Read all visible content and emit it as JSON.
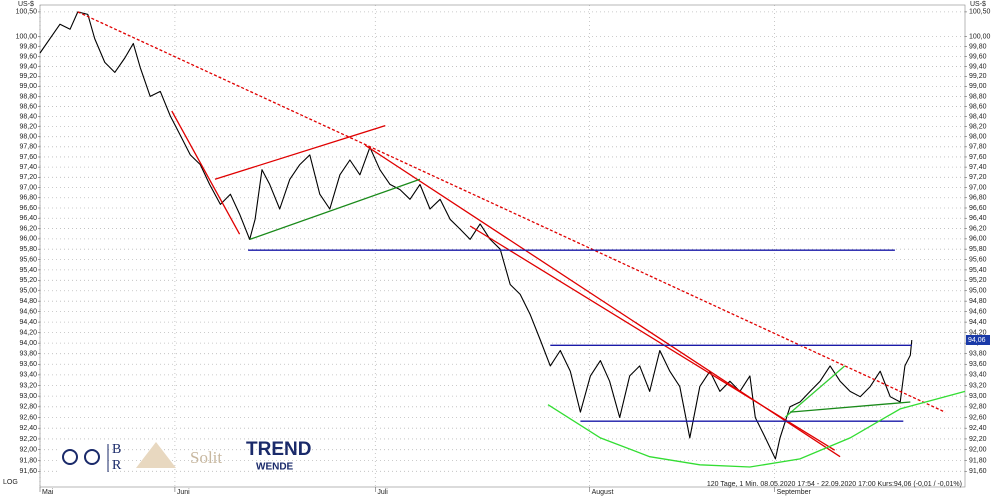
{
  "chart_data": {
    "type": "line",
    "y_unit_label": "US-$",
    "scale_label": "LOG",
    "log": true,
    "grid": true,
    "footer": "120 Tage, 1 Min. 08.05.2020 17:54 - 22.09.2020 17:00 Kurs:94,06 (-0,01 / -0,01%)",
    "price_marker": {
      "value": 94.06,
      "label": "94,06"
    },
    "logos": {
      "br": [
        "B",
        "R"
      ],
      "solit": "Solit",
      "trend": "TREND",
      "wende": "WENDE"
    },
    "xlim": [
      0,
      120
    ],
    "xticks": [
      {
        "value": 0,
        "label": "Mai"
      },
      {
        "value": 17.5,
        "label": "Juni"
      },
      {
        "value": 43.5,
        "label": "Juli"
      },
      {
        "value": 71.3,
        "label": "August"
      },
      {
        "value": 95.3,
        "label": "September"
      }
    ],
    "ylim": [
      91.31,
      100.64
    ],
    "yticks": [
      {
        "value": 100.5,
        "label": "100,50"
      },
      {
        "value": 100,
        "label": "100,00"
      },
      {
        "value": 99.8,
        "label": "99,80"
      },
      {
        "value": 99.6,
        "label": "99,60"
      },
      {
        "value": 99.4,
        "label": "99,40"
      },
      {
        "value": 99.2,
        "label": "99,20"
      },
      {
        "value": 99,
        "label": "99,00"
      },
      {
        "value": 98.8,
        "label": "98,80"
      },
      {
        "value": 98.6,
        "label": "98,60"
      },
      {
        "value": 98.4,
        "label": "98,40"
      },
      {
        "value": 98.2,
        "label": "98,20"
      },
      {
        "value": 98,
        "label": "98,00"
      },
      {
        "value": 97.8,
        "label": "97,80"
      },
      {
        "value": 97.6,
        "label": "97,60"
      },
      {
        "value": 97.4,
        "label": "97,40"
      },
      {
        "value": 97.2,
        "label": "97,20"
      },
      {
        "value": 97,
        "label": "97,00"
      },
      {
        "value": 96.8,
        "label": "96,80"
      },
      {
        "value": 96.6,
        "label": "96,60"
      },
      {
        "value": 96.4,
        "label": "96,40"
      },
      {
        "value": 96.2,
        "label": "96,20"
      },
      {
        "value": 96,
        "label": "96,00"
      },
      {
        "value": 95.8,
        "label": "95,80"
      },
      {
        "value": 95.6,
        "label": "95,60"
      },
      {
        "value": 95.4,
        "label": "95,40"
      },
      {
        "value": 95.2,
        "label": "95,20"
      },
      {
        "value": 95,
        "label": "95,00"
      },
      {
        "value": 94.8,
        "label": "94,80"
      },
      {
        "value": 94.6,
        "label": "94,60"
      },
      {
        "value": 94.4,
        "label": "94,40"
      },
      {
        "value": 94.2,
        "label": "94,20"
      },
      {
        "value": 94,
        "label": "94,00"
      },
      {
        "value": 93.8,
        "label": "93,80"
      },
      {
        "value": 93.6,
        "label": "93,60"
      },
      {
        "value": 93.4,
        "label": "93,40"
      },
      {
        "value": 93.2,
        "label": "93,20"
      },
      {
        "value": 93,
        "label": "93,00"
      },
      {
        "value": 92.8,
        "label": "92,80"
      },
      {
        "value": 92.6,
        "label": "92,60"
      },
      {
        "value": 92.4,
        "label": "92,40"
      },
      {
        "value": 92.2,
        "label": "92,20"
      },
      {
        "value": 92,
        "label": "92,00"
      },
      {
        "value": 91.8,
        "label": "91,80"
      },
      {
        "value": 91.6,
        "label": "91,60"
      }
    ],
    "x": [
      0,
      1.3,
      2.6,
      3.9,
      4.9,
      6.2,
      7.1,
      8.4,
      9.7,
      11.0,
      12.1,
      13.0,
      14.3,
      15.6,
      16.9,
      18.2,
      19.5,
      20.8,
      22.0,
      23.4,
      24.7,
      25.9,
      27.2,
      27.9,
      28.8,
      29.8,
      31.1,
      32.4,
      33.7,
      35.0,
      36.3,
      37.6,
      38.9,
      40.2,
      41.5,
      42.8,
      44.1,
      45.4,
      46.7,
      48.0,
      49.3,
      50.6,
      51.9,
      53.2,
      54.5,
      55.8,
      57.1,
      58.4,
      59.7,
      61.0,
      62.3,
      63.6,
      64.9,
      66.2,
      67.5,
      68.8,
      70.1,
      71.4,
      72.7,
      73.9,
      75.2,
      76.5,
      77.8,
      79.1,
      80.4,
      81.7,
      83.0,
      84.3,
      85.6,
      86.9,
      88.2,
      89.5,
      90.8,
      92.1,
      92.8,
      94.1,
      95.4,
      96.0,
      97.3,
      98.6,
      99.9,
      101.2,
      102.5,
      103.8,
      105.1,
      106.4,
      107.7,
      109.0,
      110.3,
      111.6,
      112.2,
      112.9,
      113.1
    ],
    "series": [
      {
        "color": "#000000",
        "values": [
          99.67,
          99.96,
          100.25,
          100.15,
          100.5,
          100.45,
          99.96,
          99.48,
          99.28,
          99.57,
          99.86,
          99.38,
          98.8,
          98.9,
          98.41,
          98.03,
          97.64,
          97.45,
          97.06,
          96.67,
          96.87,
          96.48,
          95.99,
          96.38,
          97.35,
          97.06,
          96.58,
          97.16,
          97.45,
          97.64,
          96.87,
          96.58,
          97.25,
          97.54,
          97.25,
          97.79,
          97.35,
          97.06,
          96.96,
          96.77,
          97.06,
          96.58,
          96.77,
          96.38,
          96.19,
          95.99,
          96.29,
          95.99,
          95.8,
          95.12,
          94.93,
          94.54,
          94.06,
          93.57,
          93.86,
          93.47,
          92.7,
          93.38,
          93.67,
          93.28,
          92.6,
          93.38,
          93.57,
          93.09,
          93.86,
          93.47,
          93.18,
          92.22,
          93.18,
          93.47,
          93.09,
          93.28,
          93.09,
          93.38,
          92.6,
          92.22,
          91.83,
          92.22,
          92.8,
          92.89,
          93.09,
          93.28,
          93.57,
          93.28,
          93.09,
          92.99,
          93.18,
          93.47,
          92.99,
          92.89,
          93.57,
          93.77,
          94.06
        ]
      }
    ],
    "trend_lines": [
      {
        "color": "#e00000",
        "dashed": true,
        "x": [
          4.9,
          117.4
        ],
        "y": [
          100.5,
          92.7
        ]
      },
      {
        "color": "#e00000",
        "x": [
          17.1,
          25.9
        ],
        "y": [
          98.51,
          96.09
        ]
      },
      {
        "color": "#e00000",
        "x": [
          22.7,
          44.8
        ],
        "y": [
          97.16,
          98.22
        ]
      },
      {
        "color": "#e00000",
        "x": [
          42.2,
          103.8
        ],
        "y": [
          97.83,
          91.87
        ]
      },
      {
        "color": "#e00000",
        "x": [
          55.8,
          103.1
        ],
        "y": [
          96.25,
          91.99
        ]
      },
      {
        "color": "#1a8a1a",
        "x": [
          27.2,
          49.3
        ],
        "y": [
          95.99,
          97.16
        ]
      },
      {
        "color": "#1a1aa8",
        "x": [
          27.0,
          110.9
        ],
        "y": [
          95.78,
          95.78
        ]
      },
      {
        "color": "#1a1aa8",
        "x": [
          66.2,
          113.1
        ],
        "y": [
          93.96,
          93.96
        ]
      },
      {
        "color": "#1a1aa8",
        "x": [
          70.1,
          112.0
        ],
        "y": [
          92.53,
          92.53
        ]
      },
      {
        "color": "#33cc33",
        "x": [
          96.7,
          104.4
        ],
        "y": [
          92.61,
          93.57
        ]
      },
      {
        "color": "#1a8a1a",
        "x": [
          97.3,
          112.9
        ],
        "y": [
          92.7,
          92.89
        ]
      },
      {
        "color": "#33dd33",
        "x": [
          65.9,
          72.7,
          79.1,
          85.6,
          92.1,
          98.6,
          105.1,
          111.6,
          120.0
        ],
        "y": [
          92.84,
          92.22,
          91.87,
          91.72,
          91.68,
          91.83,
          92.22,
          92.76,
          93.09
        ]
      }
    ]
  }
}
